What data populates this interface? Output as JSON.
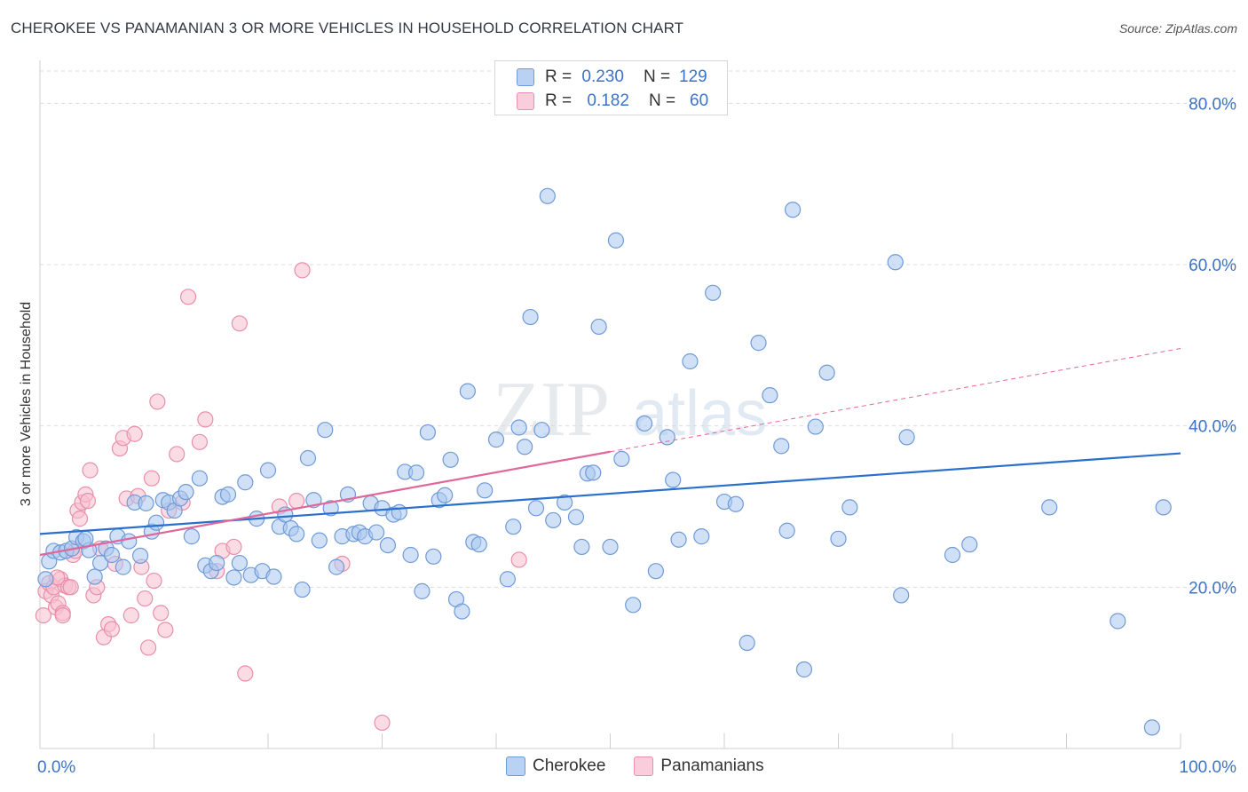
{
  "title": "CHEROKEE VS PANAMANIAN 3 OR MORE VEHICLES IN HOUSEHOLD CORRELATION CHART",
  "source": "Source: ZipAtlas.com",
  "watermark": {
    "zip": "ZIP",
    "atlas": "atlas"
  },
  "legend_top": {
    "rows": [
      {
        "r_label": "R =",
        "r_value": "0.230",
        "n_label": "N =",
        "n_value": "129"
      },
      {
        "r_label": "R =",
        "r_value": "0.182",
        "n_label": "N =",
        "n_value": "60"
      }
    ]
  },
  "legend_bottom": [
    "Cherokee",
    "Panamanians"
  ],
  "colors": {
    "cherokee_fill": "#a9c8f0",
    "cherokee_stroke": "#6f9ad6",
    "cherokee_line": "#2a6fcc",
    "panamanian_fill": "#f7bfd0",
    "panamanian_stroke": "#e88fab",
    "panamanian_line": "#e0679a",
    "axis_label": "#3b73c8",
    "grid": "#dcdcdc"
  },
  "chart_data": {
    "type": "scatter",
    "title": "CHEROKEE VS PANAMANIAN 3 OR MORE VEHICLES IN HOUSEHOLD CORRELATION CHART",
    "xlabel": "",
    "ylabel": "3 or more Vehicles in Household",
    "xlim": [
      0,
      100
    ],
    "ylim": [
      0,
      84
    ],
    "x_tick_labels": [
      "0.0%",
      "100.0%"
    ],
    "y_tick_labels": [
      "20.0%",
      "40.0%",
      "60.0%",
      "80.0%"
    ],
    "y_ticks": [
      20,
      40,
      60,
      80
    ],
    "grid": "horizontal dashed",
    "legend_position": "top-center",
    "series": [
      {
        "name": "Cherokee",
        "r": 0.23,
        "n": 129,
        "trend": {
          "x": [
            0,
            100
          ],
          "y": [
            26.6,
            36.6
          ]
        },
        "points": [
          [
            0.5,
            21.0
          ],
          [
            0.8,
            23.2
          ],
          [
            1.2,
            24.5
          ],
          [
            1.8,
            24.3
          ],
          [
            2.3,
            24.5
          ],
          [
            2.8,
            24.8
          ],
          [
            3.2,
            26.2
          ],
          [
            3.8,
            25.7
          ],
          [
            4.3,
            24.6
          ],
          [
            4.8,
            21.3
          ],
          [
            5.3,
            23.0
          ],
          [
            5.8,
            24.8
          ],
          [
            6.3,
            24.0
          ],
          [
            6.8,
            26.3
          ],
          [
            7.3,
            22.5
          ],
          [
            7.8,
            25.7
          ],
          [
            8.3,
            30.5
          ],
          [
            8.8,
            23.9
          ],
          [
            9.3,
            30.4
          ],
          [
            9.8,
            26.9
          ],
          [
            10.2,
            28.0
          ],
          [
            10.8,
            30.8
          ],
          [
            11.3,
            30.5
          ],
          [
            11.8,
            29.5
          ],
          [
            12.3,
            31.0
          ],
          [
            12.8,
            31.8
          ],
          [
            13.3,
            26.3
          ],
          [
            14.0,
            33.5
          ],
          [
            14.5,
            22.7
          ],
          [
            15.0,
            22.0
          ],
          [
            15.5,
            23.0
          ],
          [
            16.0,
            31.2
          ],
          [
            16.5,
            31.5
          ],
          [
            17.0,
            21.2
          ],
          [
            17.5,
            23.0
          ],
          [
            18.0,
            33.0
          ],
          [
            18.5,
            21.5
          ],
          [
            19.0,
            28.5
          ],
          [
            19.5,
            22.0
          ],
          [
            20.0,
            34.5
          ],
          [
            20.5,
            21.3
          ],
          [
            21.0,
            27.5
          ],
          [
            21.5,
            29.0
          ],
          [
            22.0,
            27.3
          ],
          [
            22.5,
            26.6
          ],
          [
            23.0,
            19.7
          ],
          [
            23.5,
            36.0
          ],
          [
            24.0,
            30.8
          ],
          [
            24.5,
            25.8
          ],
          [
            25.0,
            39.5
          ],
          [
            25.5,
            29.8
          ],
          [
            26.0,
            22.5
          ],
          [
            26.5,
            26.3
          ],
          [
            27.0,
            31.5
          ],
          [
            27.5,
            26.6
          ],
          [
            28.0,
            26.8
          ],
          [
            28.5,
            26.3
          ],
          [
            29.0,
            30.4
          ],
          [
            29.5,
            26.8
          ],
          [
            30.0,
            29.8
          ],
          [
            30.5,
            25.2
          ],
          [
            31.0,
            29.0
          ],
          [
            31.5,
            29.3
          ],
          [
            32.0,
            34.3
          ],
          [
            32.5,
            24.0
          ],
          [
            33.0,
            34.2
          ],
          [
            33.5,
            19.5
          ],
          [
            34.0,
            39.2
          ],
          [
            34.5,
            23.8
          ],
          [
            35.0,
            30.8
          ],
          [
            35.5,
            31.4
          ],
          [
            36.0,
            35.8
          ],
          [
            36.5,
            18.5
          ],
          [
            37.0,
            17.0
          ],
          [
            37.5,
            44.3
          ],
          [
            38.0,
            25.6
          ],
          [
            38.5,
            25.3
          ],
          [
            39.0,
            32.0
          ],
          [
            40.0,
            38.3
          ],
          [
            41.0,
            21.0
          ],
          [
            41.5,
            27.5
          ],
          [
            42.0,
            39.8
          ],
          [
            42.5,
            37.4
          ],
          [
            43.0,
            53.5
          ],
          [
            43.5,
            29.8
          ],
          [
            44.0,
            39.5
          ],
          [
            44.5,
            68.5
          ],
          [
            45.0,
            28.3
          ],
          [
            46.0,
            30.5
          ],
          [
            47.0,
            28.7
          ],
          [
            47.5,
            25.0
          ],
          [
            48.0,
            34.1
          ],
          [
            48.5,
            34.2
          ],
          [
            49.0,
            52.3
          ],
          [
            50.0,
            25.0
          ],
          [
            50.5,
            63.0
          ],
          [
            51.0,
            35.9
          ],
          [
            52.0,
            17.8
          ],
          [
            53.0,
            40.3
          ],
          [
            54.0,
            22.0
          ],
          [
            55.0,
            38.6
          ],
          [
            55.5,
            33.3
          ],
          [
            56.0,
            25.9
          ],
          [
            57.0,
            48.0
          ],
          [
            58.0,
            26.3
          ],
          [
            59.0,
            56.5
          ],
          [
            60.0,
            30.6
          ],
          [
            61.0,
            30.3
          ],
          [
            62.0,
            13.1
          ],
          [
            63.0,
            50.3
          ],
          [
            64.0,
            43.8
          ],
          [
            65.0,
            37.5
          ],
          [
            65.5,
            27.0
          ],
          [
            66.0,
            66.8
          ],
          [
            67.0,
            9.8
          ],
          [
            68.0,
            39.9
          ],
          [
            69.0,
            46.6
          ],
          [
            70.0,
            26.0
          ],
          [
            71.0,
            29.9
          ],
          [
            75.0,
            60.3
          ],
          [
            75.5,
            19.0
          ],
          [
            76.0,
            38.6
          ],
          [
            80.0,
            24.0
          ],
          [
            81.5,
            25.3
          ],
          [
            88.5,
            29.9
          ],
          [
            94.5,
            15.8
          ],
          [
            97.5,
            2.6
          ],
          [
            98.5,
            29.9
          ],
          [
            4.0,
            26.0
          ]
        ]
      },
      {
        "name": "Panamanians",
        "r": 0.182,
        "n": 60,
        "trend": {
          "x": [
            0,
            50
          ],
          "y": [
            24.0,
            36.8
          ]
        },
        "trend_extension": {
          "x": [
            50,
            100
          ],
          "y": [
            36.8,
            49.6
          ]
        },
        "points": [
          [
            0.3,
            16.5
          ],
          [
            0.5,
            19.5
          ],
          [
            0.8,
            20.5
          ],
          [
            1.0,
            19.0
          ],
          [
            1.2,
            20.0
          ],
          [
            1.4,
            17.5
          ],
          [
            1.6,
            18.0
          ],
          [
            1.8,
            21.0
          ],
          [
            2.0,
            16.8
          ],
          [
            2.2,
            20.2
          ],
          [
            2.5,
            20.0
          ],
          [
            2.7,
            20.0
          ],
          [
            2.9,
            24.0
          ],
          [
            3.1,
            24.5
          ],
          [
            3.3,
            29.5
          ],
          [
            3.5,
            28.5
          ],
          [
            3.7,
            30.5
          ],
          [
            4.0,
            31.5
          ],
          [
            4.2,
            30.7
          ],
          [
            4.4,
            34.5
          ],
          [
            4.7,
            19.0
          ],
          [
            5.0,
            20.0
          ],
          [
            5.3,
            24.8
          ],
          [
            5.6,
            13.8
          ],
          [
            6.0,
            15.4
          ],
          [
            6.3,
            14.8
          ],
          [
            6.6,
            22.9
          ],
          [
            7.0,
            37.2
          ],
          [
            7.3,
            38.5
          ],
          [
            7.6,
            31.0
          ],
          [
            8.0,
            16.5
          ],
          [
            8.3,
            39.0
          ],
          [
            8.6,
            31.3
          ],
          [
            8.9,
            22.5
          ],
          [
            9.2,
            18.6
          ],
          [
            9.5,
            12.5
          ],
          [
            9.8,
            33.5
          ],
          [
            10.0,
            20.8
          ],
          [
            10.3,
            43.0
          ],
          [
            10.6,
            16.8
          ],
          [
            11.0,
            14.7
          ],
          [
            11.3,
            29.5
          ],
          [
            12.0,
            36.5
          ],
          [
            12.5,
            30.5
          ],
          [
            13.0,
            56.0
          ],
          [
            14.0,
            38.0
          ],
          [
            14.5,
            40.8
          ],
          [
            15.5,
            22.0
          ],
          [
            16.0,
            24.5
          ],
          [
            17.0,
            25.0
          ],
          [
            17.5,
            52.7
          ],
          [
            18.0,
            9.3
          ],
          [
            21.0,
            30.0
          ],
          [
            22.5,
            30.7
          ],
          [
            23.0,
            59.3
          ],
          [
            26.5,
            22.9
          ],
          [
            30.0,
            3.2
          ],
          [
            42.0,
            23.4
          ],
          [
            1.5,
            21.2
          ],
          [
            2.0,
            16.5
          ]
        ]
      }
    ]
  }
}
